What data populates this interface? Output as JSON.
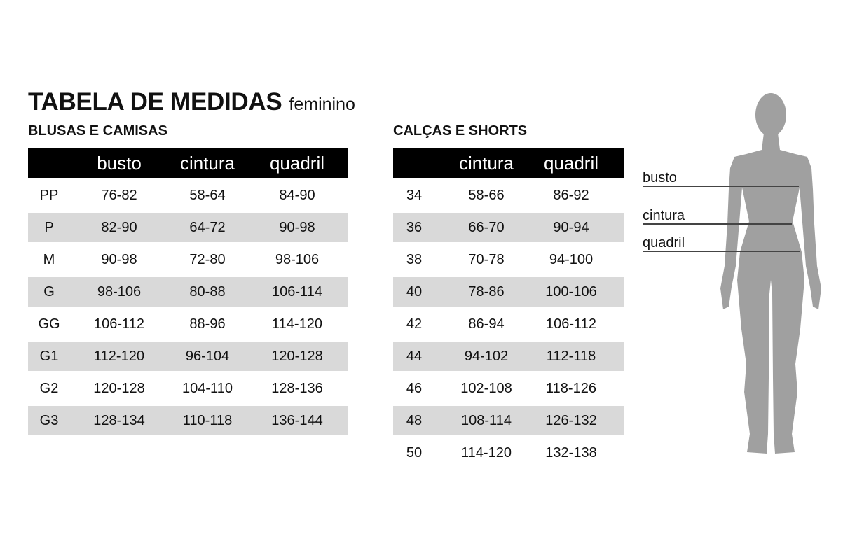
{
  "title": {
    "main": "TABELA DE MEDIDAS",
    "sub": "feminino"
  },
  "colors": {
    "header_bg": "#000000",
    "stripe": "#d9d9d9",
    "figure": "#a0a0a0",
    "lines": "#444444"
  },
  "blusas": {
    "title": "BLUSAS E CAMISAS",
    "headers": [
      "",
      "busto",
      "cintura",
      "quadril"
    ],
    "rows": [
      [
        "PP",
        "76-82",
        "58-64",
        "84-90"
      ],
      [
        "P",
        "82-90",
        "64-72",
        "90-98"
      ],
      [
        "M",
        "90-98",
        "72-80",
        "98-106"
      ],
      [
        "G",
        "98-106",
        "80-88",
        "106-114"
      ],
      [
        "GG",
        "106-112",
        "88-96",
        "114-120"
      ],
      [
        "G1",
        "112-120",
        "96-104",
        "120-128"
      ],
      [
        "G2",
        "120-128",
        "104-110",
        "128-136"
      ],
      [
        "G3",
        "128-134",
        "110-118",
        "136-144"
      ]
    ]
  },
  "calcas": {
    "title": "CALÇAS E SHORTS",
    "headers": [
      "",
      "cintura",
      "quadril"
    ],
    "rows": [
      [
        "34",
        "58-66",
        "86-92"
      ],
      [
        "36",
        "66-70",
        "90-94"
      ],
      [
        "38",
        "70-78",
        "94-100"
      ],
      [
        "40",
        "78-86",
        "100-106"
      ],
      [
        "42",
        "86-94",
        "106-112"
      ],
      [
        "44",
        "94-102",
        "112-118"
      ],
      [
        "46",
        "102-108",
        "118-126"
      ],
      [
        "48",
        "108-114",
        "126-132"
      ],
      [
        "50",
        "114-120",
        "132-138"
      ]
    ]
  },
  "figure": {
    "labels": [
      "busto",
      "cintura",
      "quadril"
    ],
    "icon": "female-body-silhouette"
  }
}
